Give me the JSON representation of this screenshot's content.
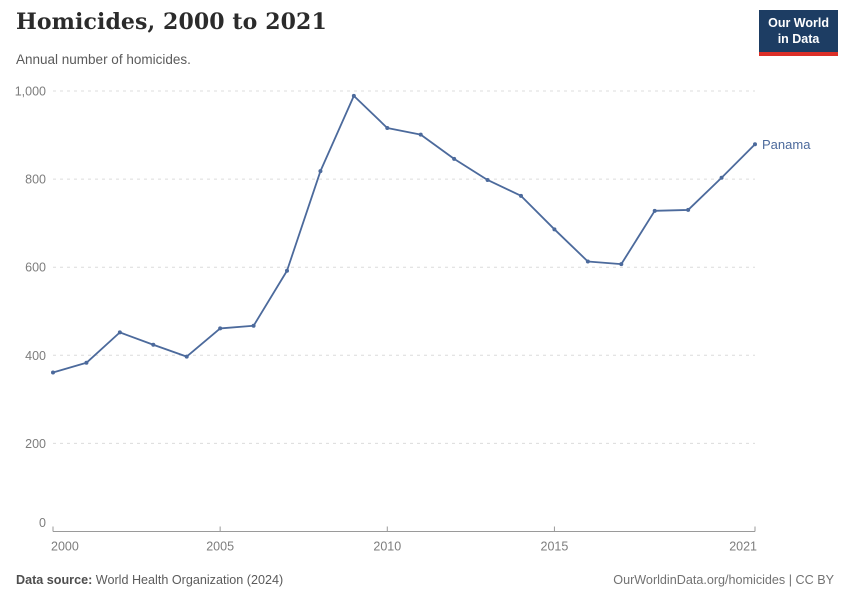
{
  "header": {
    "title": "Homicides, 2000 to 2021",
    "subtitle": "Annual number of homicides."
  },
  "logo": {
    "line1": "Our World",
    "line2": "in Data",
    "bg_color": "#1d3d63",
    "accent_color": "#dc2f28"
  },
  "chart_data": {
    "type": "line",
    "title": "Homicides, 2000 to 2021",
    "subtitle": "Annual number of homicides.",
    "x": [
      2000,
      2001,
      2002,
      2003,
      2004,
      2005,
      2006,
      2007,
      2008,
      2009,
      2010,
      2011,
      2012,
      2013,
      2014,
      2015,
      2016,
      2017,
      2018,
      2019,
      2020,
      2021
    ],
    "series": [
      {
        "name": "Panama",
        "color": "#4c6a9c",
        "values": [
          361,
          383,
          452,
          424,
          397,
          461,
          467,
          592,
          818,
          989,
          916,
          901,
          846,
          798,
          762,
          686,
          613,
          607,
          728,
          730,
          803,
          879
        ]
      }
    ],
    "xlabel": "",
    "ylabel": "",
    "xlim": [
      2000,
      2021
    ],
    "ylim": [
      0,
      1000
    ],
    "x_ticks": [
      2000,
      2005,
      2010,
      2015,
      2021
    ],
    "y_ticks": [
      0,
      200,
      400,
      600,
      800,
      1000
    ],
    "grid": "horizontal-dashed",
    "legend": "end-of-line-label",
    "colors": {
      "gridline": "#dcdcdc",
      "axis": "#9a9a9a",
      "tick_label": "#7d7d7d"
    }
  },
  "footer": {
    "source_label": "Data source:",
    "source_value": " World Health Organization (2024)",
    "right_text": "OurWorldinData.org/homicides | CC BY"
  }
}
